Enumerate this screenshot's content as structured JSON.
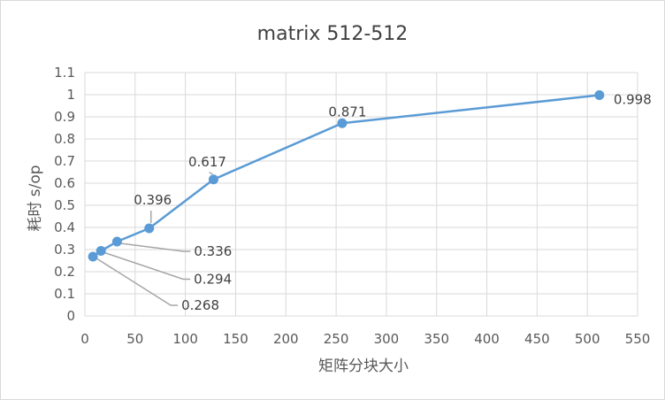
{
  "chart_data": {
    "type": "line",
    "title": "matrix 512-512",
    "xlabel": "矩阵分块大小",
    "ylabel": "耗时 s/op",
    "xlim": [
      0,
      550
    ],
    "ylim": [
      0,
      1.1
    ],
    "x_ticks": [
      "0",
      "50",
      "100",
      "150",
      "200",
      "250",
      "300",
      "350",
      "400",
      "450",
      "500",
      "550"
    ],
    "y_ticks": [
      "0",
      "0.1",
      "0.2",
      "0.3",
      "0.4",
      "0.5",
      "0.6",
      "0.7",
      "0.8",
      "0.9",
      "1",
      "1.1"
    ],
    "grid": true,
    "legend": "none",
    "series": [
      {
        "color": "#5b9bd5",
        "points": [
          {
            "x": 8,
            "y": 0.268,
            "label": "0.268"
          },
          {
            "x": 16,
            "y": 0.294,
            "label": "0.294"
          },
          {
            "x": 32,
            "y": 0.336,
            "label": "0.336"
          },
          {
            "x": 64,
            "y": 0.396,
            "label": "0.396"
          },
          {
            "x": 128,
            "y": 0.617,
            "label": "0.617"
          },
          {
            "x": 256,
            "y": 0.871,
            "label": "0.871"
          },
          {
            "x": 512,
            "y": 0.998,
            "label": "0.998"
          }
        ]
      }
    ]
  }
}
